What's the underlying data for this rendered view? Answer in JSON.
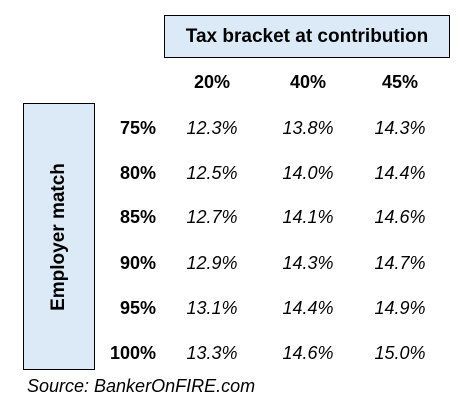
{
  "header": {
    "tax_bracket_label": "Tax bracket at contribution",
    "employer_match_label": "Employer match"
  },
  "columns": [
    "20%",
    "40%",
    "45%"
  ],
  "rows": [
    {
      "match": "75%",
      "values": [
        "12.3%",
        "13.8%",
        "14.3%"
      ]
    },
    {
      "match": "80%",
      "values": [
        "12.5%",
        "14.0%",
        "14.4%"
      ]
    },
    {
      "match": "85%",
      "values": [
        "12.7%",
        "14.1%",
        "14.6%"
      ]
    },
    {
      "match": "90%",
      "values": [
        "12.9%",
        "14.3%",
        "14.7%"
      ]
    },
    {
      "match": "95%",
      "values": [
        "13.1%",
        "14.4%",
        "14.9%"
      ]
    },
    {
      "match": "100%",
      "values": [
        "13.3%",
        "14.6%",
        "15.0%"
      ]
    }
  ],
  "footer": {
    "source": "Source: BankerOnFIRE.com"
  }
}
